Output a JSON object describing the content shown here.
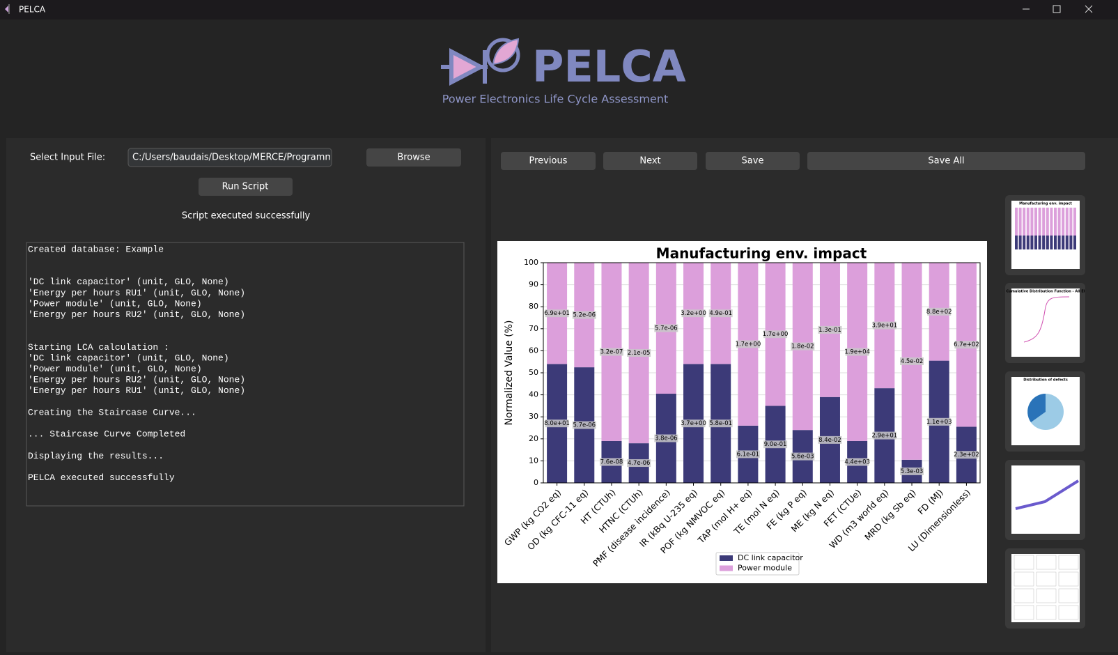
{
  "window": {
    "title": "PELCA"
  },
  "header": {
    "title": "PELCA",
    "subtitle": "Power Electronics Life Cycle Assessment"
  },
  "left_panel": {
    "file_label": "Select Input File:",
    "file_path": "C:/Users/baudais/Desktop/MERCE/Programmation",
    "browse_button": "Browse",
    "run_button": "Run Script",
    "status": "Script executed successfully",
    "log": [
      [
        "Created database: Example"
      ],
      [
        "'DC link capacitor' (unit, GLO, None)",
        "'Energy per hours RU1' (unit, GLO, None)",
        "'Power module' (unit, GLO, None)",
        "'Energy per hours RU2' (unit, GLO, None)"
      ],
      [
        "Starting LCA calculation :",
        "'DC link capacitor' (unit, GLO, None)",
        "'Power module' (unit, GLO, None)",
        "'Energy per hours RU2' (unit, GLO, None)",
        "'Energy per hours RU1' (unit, GLO, None)"
      ],
      [
        "Creating the Staircase Curve..."
      ],
      [
        "... Staircase Curve Completed"
      ],
      [
        "Displaying the results..."
      ],
      [
        "PELCA executed successfully"
      ]
    ]
  },
  "right_panel": {
    "buttons": [
      "Previous",
      "Next",
      "Save",
      "Save All"
    ],
    "thumbnails": [
      "Manufacturing env. impact",
      "Cumulative Distribution Function - All El",
      "Distribution of defects"
    ]
  },
  "chart_data": {
    "type": "stacked_bar",
    "title": "Manufacturing env. impact",
    "y_label": "Normalized Value (%)",
    "categories": [
      "GWP (kg CO2 eq)",
      "OD (kg CFC-11 eq)",
      "HT (CTUh)",
      "HTNC (CTUh)",
      "PMF (disease incidence)",
      "IR (kBq U-235 eq)",
      "POF (kg NMVOC eq)",
      "TAP (mol H+ eq)",
      "TE (mol N eq)",
      "FE (kg P eq)",
      "ME (kg N eq)",
      "FET (CTUe)",
      "WD (m3 world eq)",
      "MRD (kg Sb eq)",
      "FD (MJ)",
      "LU (Dimensionless)"
    ],
    "series": [
      {
        "name": "DC link capacitor",
        "color": "#3c3a78",
        "values": [
          54,
          52.5,
          19,
          18,
          40.5,
          54,
          54,
          26,
          35,
          24,
          39,
          19,
          43,
          10.5,
          55.5,
          25.5
        ],
        "segment_labels": [
          "8.0e+01",
          "5.7e-06",
          "7.6e-08",
          "4.7e-06",
          "3.8e-06",
          "3.7e+00",
          "5.8e-01",
          "6.1e-01",
          "9.0e-01",
          "5.6e-03",
          "8.4e-02",
          "4.4e+03",
          "2.9e+01",
          "5.3e-03",
          "1.1e+03",
          "2.3e+02"
        ]
      },
      {
        "name": "Power module",
        "color": "#dc9fdb",
        "values": [
          46,
          47.5,
          81,
          82,
          59.5,
          46,
          46,
          74,
          65,
          76,
          61,
          81,
          57,
          89.5,
          44.5,
          74.5
        ],
        "segment_labels": [
          "6.9e+01",
          "5.2e-06",
          "3.2e-07",
          "2.1e-05",
          "5.7e-06",
          "3.2e+00",
          "4.9e-01",
          "1.7e+00",
          "1.7e+00",
          "1.8e-02",
          "1.3e-01",
          "1.9e+04",
          "3.9e+01",
          "4.5e-02",
          "8.8e+02",
          "6.7e+02"
        ]
      }
    ],
    "ylim": [
      0,
      100
    ],
    "yticks": [
      0,
      10,
      20,
      30,
      40,
      50,
      60,
      70,
      80,
      90,
      100
    ],
    "grid": true,
    "legend": "bottom"
  }
}
